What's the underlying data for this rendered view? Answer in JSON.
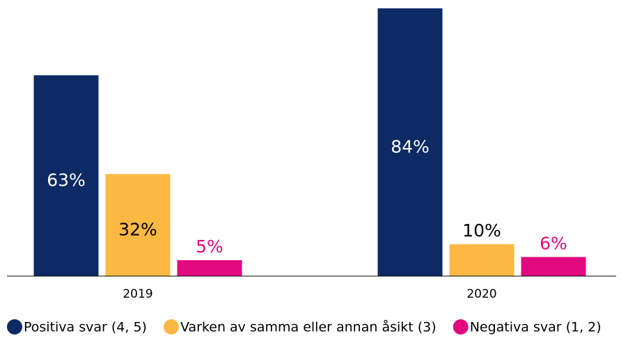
{
  "chart_data": {
    "type": "bar",
    "categories": [
      "2019",
      "2020"
    ],
    "series": [
      {
        "name": "Positiva svar (4, 5)",
        "color": "#0c2a63",
        "label_color": "#ffffff",
        "values": [
          63,
          84
        ],
        "value_labels": [
          "63%",
          "84%"
        ]
      },
      {
        "name": "Varken av samma eller annan åsikt (3)",
        "color": "#fbb843",
        "label_color": "#000000",
        "values": [
          32,
          10
        ],
        "value_labels": [
          "32%",
          "10%"
        ]
      },
      {
        "name": "Negativa svar (1, 2)",
        "color": "#e2087d",
        "label_color": "#e2087d",
        "values": [
          5,
          6
        ],
        "value_labels": [
          "5%",
          "6%"
        ]
      }
    ],
    "ylim": [
      0,
      84
    ],
    "legend": "bottom"
  }
}
